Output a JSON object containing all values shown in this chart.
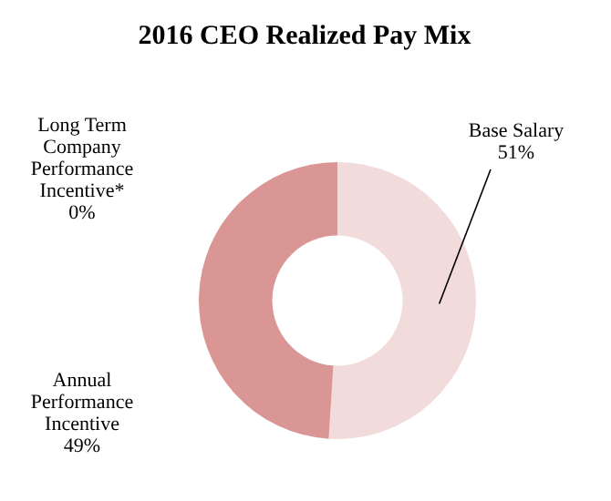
{
  "chart_data": {
    "type": "donut",
    "title": "2016 CEO Realized Pay Mix",
    "categories": [
      "Base Salary",
      "Annual Performance Incentive",
      "Long Term Company Performance Incentive*"
    ],
    "values": [
      51,
      49,
      0
    ],
    "colors": [
      "#f2dcdb",
      "#d99694",
      "#c0504d"
    ],
    "value_labels": [
      "51%",
      "49%",
      "0%"
    ],
    "legend": false
  }
}
